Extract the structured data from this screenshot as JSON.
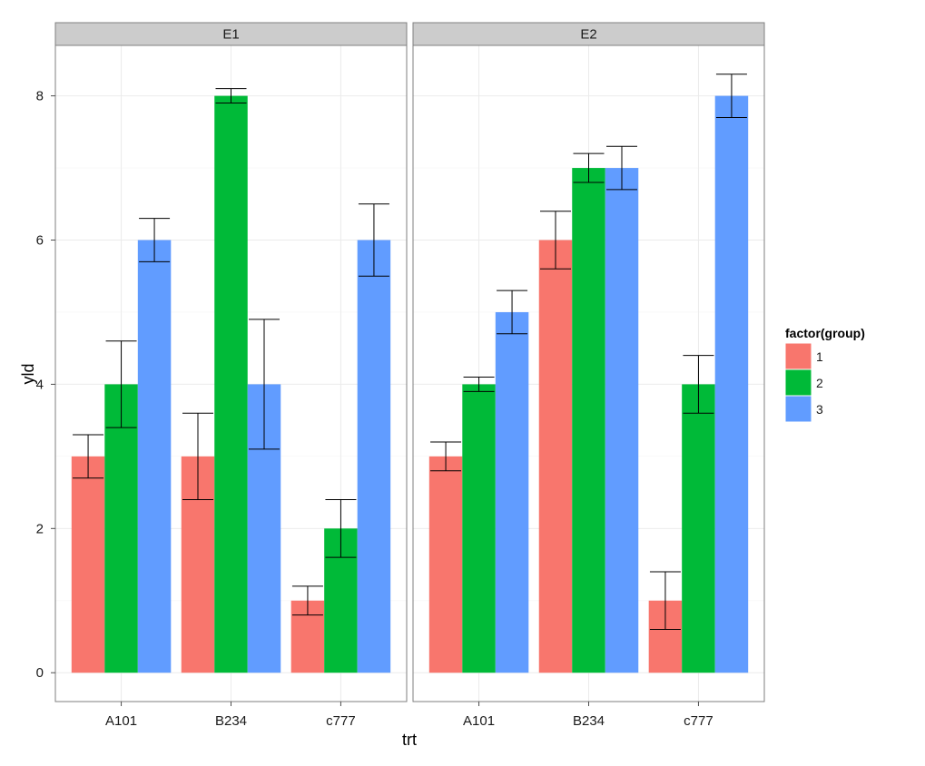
{
  "chart_data": {
    "type": "bar",
    "layout": "faceted-dodged-bar-with-error-bars",
    "facets": [
      "E1",
      "E2"
    ],
    "categories": [
      "A101",
      "B234",
      "c777"
    ],
    "xlabel": "trt",
    "ylabel": "yld",
    "ylim": [
      -0.4,
      8.7
    ],
    "yticks": [
      0,
      2,
      4,
      6,
      8
    ],
    "grid": true,
    "legend": {
      "title": "factor(group)",
      "position": "right"
    },
    "series": [
      {
        "name": "1",
        "color": "#F8766D",
        "values": {
          "E1": [
            3,
            3,
            1
          ],
          "E2": [
            3,
            6,
            1
          ]
        },
        "error_low": {
          "E1": [
            2.7,
            2.4,
            0.8
          ],
          "E2": [
            2.8,
            5.6,
            0.6
          ]
        },
        "error_high": {
          "E1": [
            3.3,
            3.6,
            1.2
          ],
          "E2": [
            3.2,
            6.4,
            1.4
          ]
        }
      },
      {
        "name": "2",
        "color": "#00BA38",
        "values": {
          "E1": [
            4,
            8,
            2
          ],
          "E2": [
            4,
            7,
            4
          ]
        },
        "error_low": {
          "E1": [
            3.4,
            7.9,
            1.6
          ],
          "E2": [
            3.9,
            6.8,
            3.6
          ]
        },
        "error_high": {
          "E1": [
            4.6,
            8.1,
            2.4
          ],
          "E2": [
            4.1,
            7.2,
            4.4
          ]
        }
      },
      {
        "name": "3",
        "color": "#619CFF",
        "values": {
          "E1": [
            6,
            4,
            6
          ],
          "E2": [
            5,
            7,
            8
          ]
        },
        "error_low": {
          "E1": [
            5.7,
            3.1,
            5.5
          ],
          "E2": [
            4.7,
            6.7,
            7.7
          ]
        },
        "error_high": {
          "E1": [
            6.3,
            4.9,
            6.5
          ],
          "E2": [
            5.3,
            7.3,
            8.3
          ]
        }
      }
    ]
  },
  "colors": {
    "strip_background": "#CCCCCC",
    "panel_border": "#7F7F7F",
    "grid": "#EBEBEB",
    "error_bar": "#000000"
  }
}
